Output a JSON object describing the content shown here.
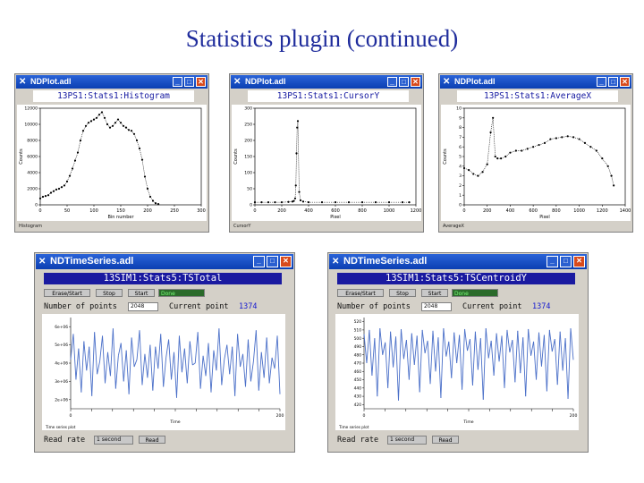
{
  "slide_title": "Statistics plugin (continued)",
  "ndplot": [
    {
      "window_title": "NDPlot.adl",
      "header": "13PS1:Stats1:Histogram",
      "footer": "Histogram",
      "chart_data": {
        "type": "scatter",
        "title": "",
        "xlabel": "Bin number",
        "ylabel": "Counts",
        "xlim": [
          0,
          300
        ],
        "ylim": [
          0,
          12000
        ],
        "x_ticks": [
          "0",
          "50",
          "100",
          "150",
          "200",
          "250",
          "300"
        ],
        "y_ticks": [
          "0",
          "2000",
          "4000",
          "6000",
          "8000",
          "10000",
          "12000"
        ],
        "x": [
          0,
          5,
          10,
          15,
          20,
          25,
          30,
          35,
          40,
          45,
          50,
          55,
          60,
          65,
          70,
          75,
          80,
          85,
          90,
          95,
          100,
          105,
          110,
          115,
          120,
          125,
          130,
          135,
          140,
          145,
          150,
          155,
          160,
          165,
          170,
          175,
          180,
          185,
          190,
          195,
          200,
          205,
          210,
          215,
          220
        ],
        "y": [
          800,
          1000,
          1100,
          1200,
          1500,
          1700,
          1900,
          2000,
          2200,
          2400,
          2900,
          3600,
          4500,
          5500,
          6500,
          8000,
          9200,
          9800,
          10200,
          10400,
          10600,
          10800,
          11200,
          11500,
          10800,
          10000,
          9600,
          9800,
          10200,
          10600,
          10200,
          9800,
          9600,
          9300,
          9200,
          8800,
          8000,
          7000,
          5600,
          3500,
          2000,
          1000,
          500,
          200,
          100
        ]
      }
    },
    {
      "window_title": "NDPlot.adl",
      "header": "13PS1:Stats1:CursorY",
      "footer": "CursorY",
      "chart_data": {
        "type": "scatter",
        "title": "",
        "xlabel": "Pixel",
        "ylabel": "Counts",
        "xlim": [
          0,
          1200
        ],
        "ylim": [
          0,
          300
        ],
        "x_ticks": [
          "0",
          "200",
          "400",
          "600",
          "800",
          "1000",
          "1200"
        ],
        "y_ticks": [
          "0",
          "50",
          "100",
          "150",
          "200",
          "250",
          "300"
        ],
        "x": [
          0,
          50,
          100,
          150,
          200,
          250,
          280,
          290,
          300,
          305,
          310,
          315,
          320,
          330,
          340,
          360,
          400,
          500,
          600,
          700,
          800,
          900,
          1000,
          1100,
          1150
        ],
        "y": [
          8,
          8,
          8,
          8,
          8,
          9,
          10,
          12,
          20,
          60,
          160,
          240,
          260,
          40,
          14,
          10,
          8,
          8,
          8,
          8,
          8,
          8,
          8,
          8,
          8
        ]
      }
    },
    {
      "window_title": "NDPlot.adl",
      "header": "13PS1:Stats1:AverageX",
      "footer": "AverageX",
      "chart_data": {
        "type": "scatter",
        "title": "",
        "xlabel": "Pixel",
        "ylabel": "Counts",
        "xlim": [
          0,
          1400
        ],
        "ylim": [
          0,
          10
        ],
        "x_ticks": [
          "0",
          "200",
          "400",
          "600",
          "800",
          "1000",
          "1200",
          "1400"
        ],
        "y_ticks": [
          "0",
          "1",
          "2",
          "3",
          "4",
          "5",
          "6",
          "7",
          "8",
          "9",
          "10"
        ],
        "x": [
          0,
          40,
          80,
          120,
          160,
          200,
          230,
          250,
          270,
          290,
          320,
          360,
          400,
          450,
          500,
          550,
          600,
          650,
          700,
          750,
          800,
          850,
          900,
          950,
          1000,
          1050,
          1100,
          1150,
          1200,
          1250,
          1280,
          1300
        ],
        "y": [
          3.8,
          3.6,
          3.2,
          3.0,
          3.4,
          4.2,
          7.5,
          9.0,
          5.0,
          4.8,
          4.8,
          5.0,
          5.4,
          5.6,
          5.6,
          5.8,
          6.0,
          6.2,
          6.4,
          6.8,
          6.9,
          7.0,
          7.1,
          7.0,
          6.8,
          6.4,
          6.0,
          5.6,
          4.8,
          4.0,
          3.0,
          2.0
        ]
      }
    }
  ],
  "timeseries": [
    {
      "window_title": "NDTimeSeries.adl",
      "header": "13SIM1:Stats5:TSTotal",
      "buttons": {
        "erase_start": "Erase/Start",
        "stop": "Stop",
        "start": "Start",
        "status": "Done"
      },
      "num_points_label": "Number of points",
      "num_points_value": "2048",
      "current_point_label": "Current point",
      "current_point_value": "1374",
      "read_rate_label": "Read rate",
      "read_rate_value": "1 second",
      "read_button": "Read",
      "plot_footer": "Time series plot",
      "chart_data": {
        "type": "line",
        "title": "",
        "xlabel": "Time",
        "ylabel": "",
        "xlim": [
          0,
          200
        ],
        "x_ticks": [
          "0",
          "",
          "",
          "",
          "",
          "",
          "",
          "",
          "",
          "",
          "200"
        ],
        "y_ticks": [
          "2e+06",
          "3e+06",
          "4e+06",
          "5e+06",
          "6e+06"
        ],
        "ylim": [
          1500000,
          6500000
        ],
        "series": [
          {
            "values": [
              4.2,
              5.6,
              3.1,
              4.8,
              2.4,
              5.2,
              3.6,
              4.9,
              2.2,
              5.7,
              3.4,
              4.1,
              5.5,
              2.9,
              4.6,
              3.3,
              5.9,
              2.6,
              4.4,
              5.1,
              3.0,
              4.7,
              2.3,
              5.4,
              3.8,
              4.2,
              5.8,
              2.8,
              4.5,
              3.2,
              5.0,
              2.5,
              4.9,
              3.7,
              5.6,
              2.7,
              4.3,
              5.3,
              3.1,
              4.6,
              2.1,
              5.5,
              3.5,
              4.8,
              2.9,
              5.2,
              3.9,
              4.0,
              5.7,
              2.6,
              4.4,
              3.3,
              5.1,
              2.4,
              4.7,
              3.6,
              5.9,
              2.8,
              4.2,
              5.0,
              3.4,
              4.9,
              2.2,
              5.6,
              3.8,
              4.5,
              2.7,
              5.3,
              3.0,
              4.1,
              5.8,
              2.5,
              4.6,
              3.2,
              5.4,
              2.9,
              4.3,
              3.7,
              5.5,
              2.3
            ]
          }
        ]
      }
    },
    {
      "window_title": "NDTimeSeries.adl",
      "header": "13SIM1:Stats5:TSCentroidY",
      "buttons": {
        "erase_start": "Erase/Start",
        "stop": "Stop",
        "start": "Start",
        "status": "Done"
      },
      "num_points_label": "Number of points",
      "num_points_value": "2048",
      "current_point_label": "Current point",
      "current_point_value": "1374",
      "read_rate_label": "Read rate",
      "read_rate_value": "1 second",
      "read_button": "Read",
      "plot_footer": "Time series plot",
      "chart_data": {
        "type": "line",
        "title": "",
        "xlabel": "Time",
        "ylabel": "",
        "xlim": [
          0,
          200
        ],
        "x_ticks": [
          "0",
          "",
          "",
          "",
          "",
          "",
          "",
          "",
          "",
          "",
          "200"
        ],
        "y_ticks": [
          "420",
          "430",
          "440",
          "450",
          "460",
          "470",
          "480",
          "490",
          "500",
          "510",
          "520"
        ],
        "ylim": [
          415,
          525
        ],
        "series": [
          {
            "values": [
              505,
              470,
              510,
              455,
              500,
              430,
              512,
              480,
              495,
              440,
              508,
              465,
              502,
              425,
              511,
              475,
              498,
              450,
              506,
              468,
              503,
              435,
              510,
              482,
              497,
              445,
              509,
              460,
              501,
              428,
              512,
              478,
              496,
              452,
              507,
              470,
              504,
              438,
              511,
              485,
              499,
              443,
              508,
              462,
              500,
              426,
              512,
              476,
              497,
              455,
              506,
              472,
              503,
              440,
              510,
              483,
              498,
              447,
              509,
              458,
              501,
              430,
              511,
              479,
              496,
              450,
              507,
              466,
              504,
              436,
              510,
              484,
              499,
              444,
              508,
              461,
              500,
              427,
              512,
              474
            ]
          }
        ]
      }
    }
  ]
}
